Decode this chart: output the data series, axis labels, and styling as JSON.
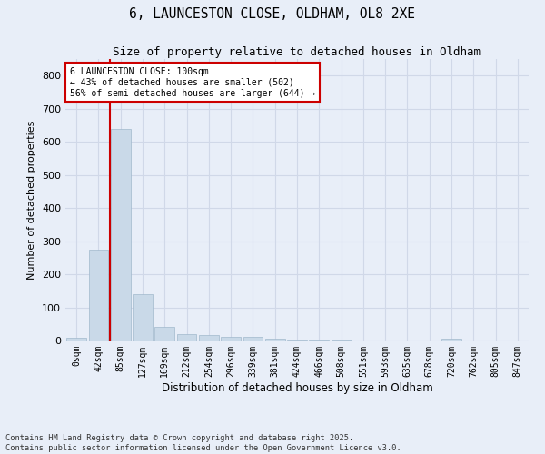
{
  "title_line1": "6, LAUNCESTON CLOSE, OLDHAM, OL8 2XE",
  "title_line2": "Size of property relative to detached houses in Oldham",
  "xlabel": "Distribution of detached houses by size in Oldham",
  "ylabel": "Number of detached properties",
  "categories": [
    "0sqm",
    "42sqm",
    "85sqm",
    "127sqm",
    "169sqm",
    "212sqm",
    "254sqm",
    "296sqm",
    "339sqm",
    "381sqm",
    "424sqm",
    "466sqm",
    "508sqm",
    "551sqm",
    "593sqm",
    "635sqm",
    "678sqm",
    "720sqm",
    "762sqm",
    "805sqm",
    "847sqm"
  ],
  "values": [
    8,
    275,
    640,
    140,
    42,
    20,
    17,
    12,
    10,
    6,
    3,
    2,
    2,
    1,
    1,
    1,
    1,
    5,
    1,
    1,
    1
  ],
  "bar_color": "#c9d9e8",
  "bar_edge_color": "#a0b8cc",
  "vline_color": "#cc0000",
  "annotation_text": "6 LAUNCESTON CLOSE: 100sqm\n← 43% of detached houses are smaller (502)\n56% of semi-detached houses are larger (644) →",
  "annotation_box_color": "#ffffff",
  "annotation_box_edge": "#cc0000",
  "ylim": [
    0,
    850
  ],
  "yticks": [
    0,
    100,
    200,
    300,
    400,
    500,
    600,
    700,
    800
  ],
  "grid_color": "#d0d8e8",
  "bg_color": "#e8eef8",
  "footer_line1": "Contains HM Land Registry data © Crown copyright and database right 2025.",
  "footer_line2": "Contains public sector information licensed under the Open Government Licence v3.0."
}
